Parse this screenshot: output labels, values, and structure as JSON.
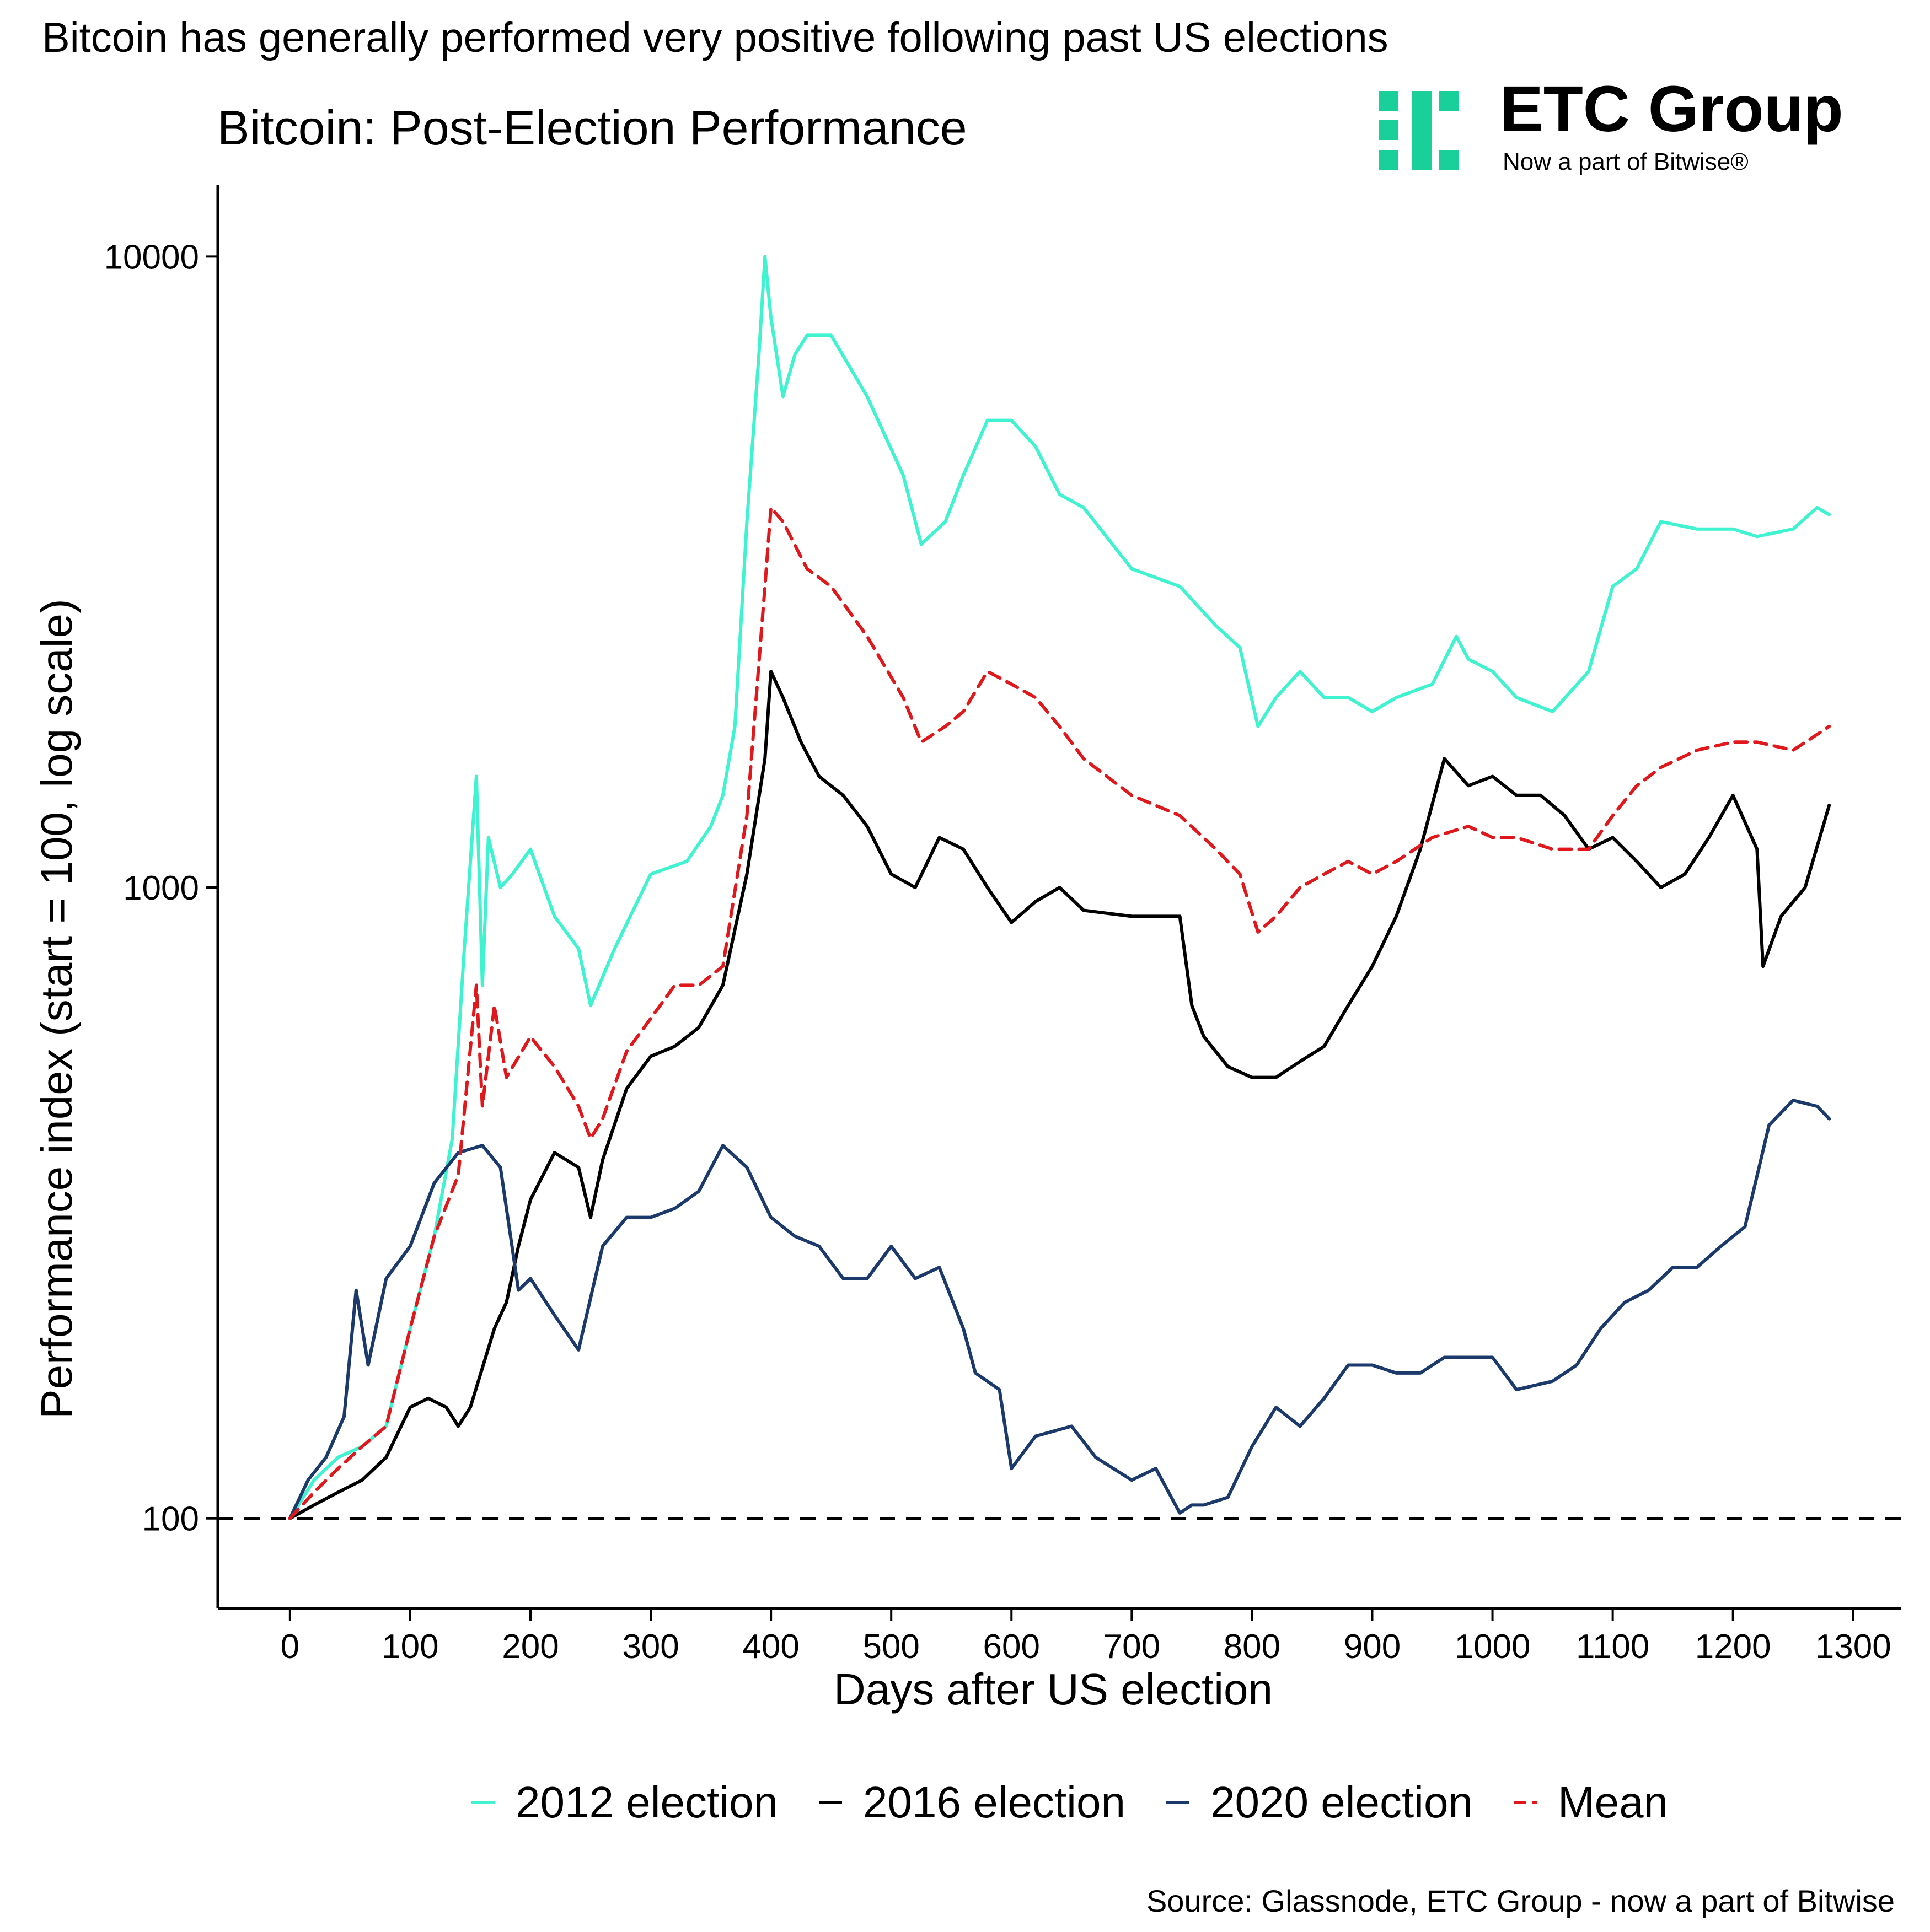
{
  "header": {
    "headline": "Bitcoin has generally performed very positive following past US elections"
  },
  "logo": {
    "name": "ETC Group",
    "tagline": "Now a part of Bitwise®",
    "color": "#19cf9a"
  },
  "source": "Source: Glassnode, ETC Group - now a part of Bitwise",
  "chart_data": {
    "type": "line",
    "title": "Bitcoin: Post-Election Performance",
    "xlabel": "Days after US election",
    "ylabel": "Performance index (start = 100, log scale)",
    "y_scale": "log",
    "xlim": [
      -60,
      1340
    ],
    "ylim": [
      72,
      13000
    ],
    "x_ticks": [
      0,
      100,
      200,
      300,
      400,
      500,
      600,
      700,
      800,
      900,
      1000,
      1100,
      1200,
      1300
    ],
    "x_tick_labels": [
      "0",
      "100",
      "200",
      "300",
      "400",
      "500",
      "600",
      "700",
      "800",
      "900",
      "1000",
      "1100",
      "1200",
      "1300"
    ],
    "y_ticks": [
      100,
      1000,
      10000
    ],
    "y_tick_labels": [
      "100",
      "1000",
      "10000"
    ],
    "reference_line": {
      "y": 100,
      "style": "dashed",
      "color": "#000000"
    },
    "grid": false,
    "legend": "bottom",
    "series": [
      {
        "name": "2012 election",
        "color": "#3ff2d0",
        "dash": "solid",
        "x": [
          0,
          20,
          40,
          60,
          80,
          100,
          120,
          135,
          145,
          155,
          160,
          165,
          175,
          185,
          200,
          220,
          240,
          250,
          270,
          300,
          330,
          350,
          360,
          370,
          380,
          390,
          395,
          400,
          410,
          420,
          430,
          450,
          480,
          510,
          525,
          545,
          560,
          580,
          600,
          620,
          640,
          660,
          700,
          740,
          770,
          790,
          805,
          820,
          840,
          860,
          880,
          900,
          920,
          950,
          970,
          980,
          1000,
          1020,
          1050,
          1080,
          1100,
          1120,
          1140,
          1170,
          1200,
          1220,
          1250,
          1270,
          1280
        ],
        "values": [
          100,
          115,
          125,
          130,
          140,
          200,
          280,
          400,
          800,
          1500,
          700,
          1200,
          1000,
          1050,
          1150,
          900,
          800,
          650,
          800,
          1050,
          1100,
          1250,
          1400,
          1800,
          3800,
          7000,
          10000,
          8000,
          6000,
          7000,
          7500,
          7500,
          6000,
          4500,
          3500,
          3800,
          4500,
          5500,
          5500,
          5000,
          4200,
          4000,
          3200,
          3000,
          2600,
          2400,
          1800,
          2000,
          2200,
          2000,
          2000,
          1900,
          2000,
          2100,
          2500,
          2300,
          2200,
          2000,
          1900,
          2200,
          3000,
          3200,
          3800,
          3700,
          3700,
          3600,
          3700,
          4000,
          3900
        ]
      },
      {
        "name": "2016 election",
        "color": "#000000",
        "dash": "solid",
        "x": [
          0,
          20,
          40,
          60,
          80,
          100,
          115,
          130,
          140,
          150,
          170,
          180,
          190,
          200,
          220,
          240,
          250,
          260,
          280,
          300,
          320,
          340,
          360,
          380,
          395,
          400,
          410,
          425,
          440,
          460,
          480,
          500,
          520,
          540,
          560,
          580,
          600,
          620,
          640,
          660,
          700,
          740,
          750,
          760,
          780,
          800,
          820,
          840,
          860,
          880,
          900,
          920,
          940,
          960,
          980,
          1000,
          1020,
          1040,
          1060,
          1080,
          1100,
          1120,
          1140,
          1160,
          1180,
          1200,
          1220,
          1225,
          1240,
          1260,
          1280
        ],
        "values": [
          100,
          105,
          110,
          115,
          125,
          150,
          155,
          150,
          140,
          150,
          200,
          220,
          270,
          320,
          380,
          360,
          300,
          370,
          480,
          540,
          560,
          600,
          700,
          1050,
          1600,
          2200,
          2000,
          1700,
          1500,
          1400,
          1250,
          1050,
          1000,
          1200,
          1150,
          1000,
          880,
          950,
          1000,
          920,
          900,
          900,
          650,
          580,
          520,
          500,
          500,
          530,
          560,
          650,
          750,
          900,
          1150,
          1600,
          1450,
          1500,
          1400,
          1400,
          1300,
          1150,
          1200,
          1100,
          1000,
          1050,
          1200,
          1400,
          1150,
          750,
          900,
          1000,
          1350
        ]
      },
      {
        "name": "2020 election",
        "color": "#1b3a6b",
        "dash": "solid",
        "x": [
          0,
          15,
          30,
          45,
          55,
          65,
          80,
          100,
          120,
          140,
          160,
          175,
          190,
          200,
          220,
          240,
          260,
          280,
          300,
          320,
          340,
          360,
          380,
          400,
          420,
          440,
          460,
          480,
          500,
          520,
          540,
          560,
          570,
          590,
          600,
          620,
          650,
          670,
          700,
          720,
          740,
          750,
          760,
          780,
          800,
          820,
          840,
          860,
          880,
          900,
          920,
          940,
          960,
          980,
          1000,
          1020,
          1050,
          1070,
          1090,
          1110,
          1130,
          1150,
          1170,
          1190,
          1210,
          1230,
          1250,
          1270,
          1280
        ],
        "values": [
          100,
          115,
          125,
          145,
          230,
          175,
          240,
          270,
          340,
          380,
          390,
          360,
          230,
          240,
          210,
          185,
          270,
          300,
          300,
          310,
          330,
          390,
          360,
          300,
          280,
          270,
          240,
          240,
          270,
          240,
          250,
          200,
          170,
          160,
          120,
          135,
          140,
          125,
          115,
          120,
          102,
          105,
          105,
          108,
          130,
          150,
          140,
          155,
          175,
          175,
          170,
          170,
          180,
          180,
          180,
          160,
          165,
          175,
          200,
          220,
          230,
          250,
          250,
          270,
          290,
          420,
          460,
          450,
          430
        ]
      },
      {
        "name": "Mean",
        "color": "#e0181b",
        "dash": "dashed",
        "x": [
          0,
          20,
          40,
          60,
          80,
          100,
          120,
          140,
          155,
          160,
          170,
          180,
          200,
          220,
          240,
          250,
          260,
          280,
          300,
          320,
          340,
          360,
          380,
          395,
          400,
          410,
          430,
          450,
          480,
          510,
          525,
          545,
          560,
          580,
          600,
          620,
          640,
          660,
          700,
          740,
          770,
          790,
          805,
          820,
          840,
          860,
          880,
          900,
          920,
          950,
          980,
          1000,
          1020,
          1050,
          1080,
          1100,
          1120,
          1140,
          1170,
          1200,
          1220,
          1250,
          1280
        ],
        "values": [
          100,
          110,
          120,
          130,
          140,
          200,
          280,
          350,
          700,
          450,
          650,
          500,
          580,
          520,
          450,
          400,
          430,
          550,
          620,
          700,
          700,
          750,
          1300,
          3000,
          4000,
          3800,
          3200,
          3000,
          2500,
          2000,
          1700,
          1800,
          1900,
          2200,
          2100,
          2000,
          1800,
          1600,
          1400,
          1300,
          1150,
          1050,
          850,
          900,
          1000,
          1050,
          1100,
          1050,
          1100,
          1200,
          1250,
          1200,
          1200,
          1150,
          1150,
          1300,
          1450,
          1550,
          1650,
          1700,
          1700,
          1650,
          1800
        ]
      }
    ]
  }
}
